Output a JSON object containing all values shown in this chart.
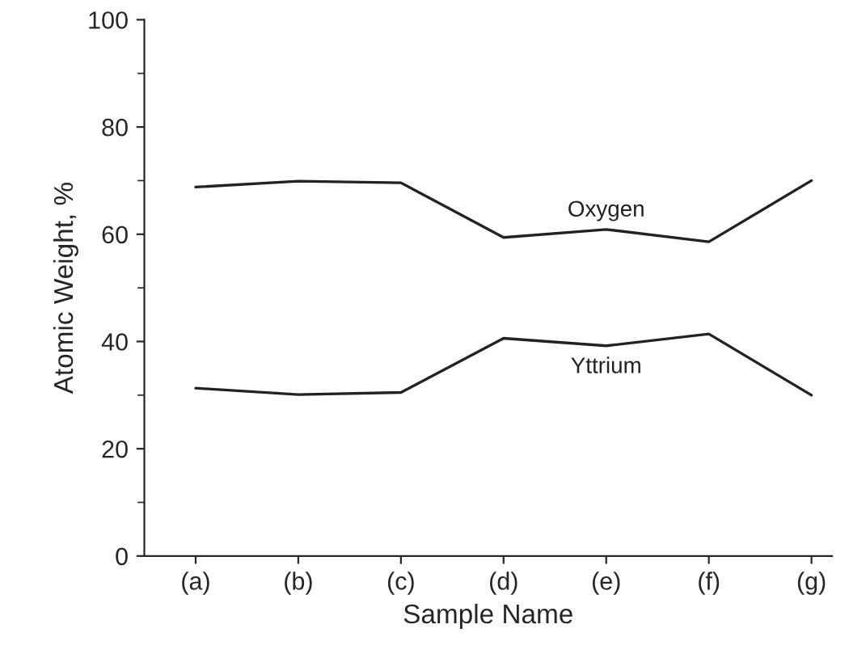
{
  "chart_data": {
    "type": "line",
    "xlabel": "Sample Name",
    "ylabel": "Atomic Weight, %",
    "categories": [
      "(a)",
      "(b)",
      "(c)",
      "(d)",
      "(e)",
      "(f)",
      "(g)"
    ],
    "series": [
      {
        "name": "Oxygen",
        "color": "#222222",
        "values": [
          68.8,
          69.9,
          69.6,
          59.4,
          60.9,
          58.6,
          70.0
        ]
      },
      {
        "name": "Yttrium",
        "color": "#222222",
        "values": [
          31.3,
          30.1,
          30.5,
          40.6,
          39.2,
          41.4,
          30.0
        ]
      }
    ],
    "ylim": [
      0,
      100
    ],
    "yticks": [
      0,
      20,
      40,
      60,
      80,
      100
    ],
    "grid": false,
    "legend": false,
    "marker": "none",
    "line_style": "solid"
  }
}
